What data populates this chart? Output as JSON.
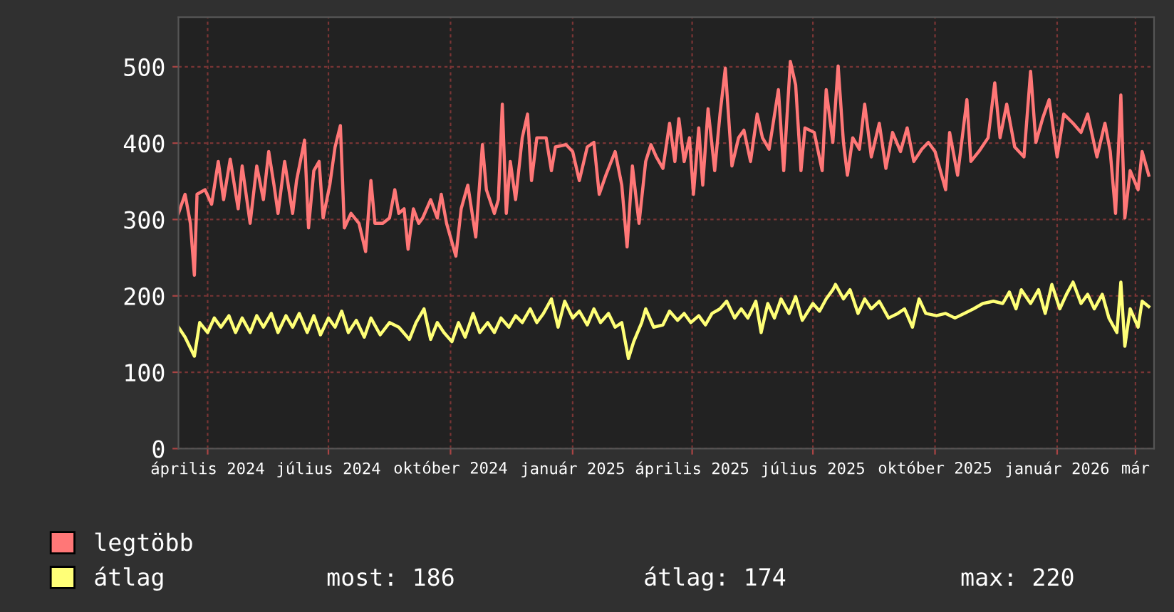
{
  "chart_data": {
    "type": "line",
    "x": [
      "2024-03-10",
      "2024-03-15",
      "2024-03-19",
      "2024-03-22",
      "2024-03-24",
      "2024-03-30",
      "2024-04-04",
      "2024-04-09",
      "2024-04-13",
      "2024-04-18",
      "2024-04-24",
      "2024-04-27",
      "2024-05-03",
      "2024-05-08",
      "2024-05-13",
      "2024-05-17",
      "2024-05-21",
      "2024-05-24",
      "2024-05-29",
      "2024-06-04",
      "2024-06-07",
      "2024-06-13",
      "2024-06-16",
      "2024-06-20",
      "2024-06-24",
      "2024-06-27",
      "2024-07-02",
      "2024-07-06",
      "2024-07-10",
      "2024-07-13",
      "2024-07-18",
      "2024-07-24",
      "2024-07-29",
      "2024-08-02",
      "2024-08-05",
      "2024-08-11",
      "2024-08-16",
      "2024-08-20",
      "2024-08-23",
      "2024-08-27",
      "2024-08-30",
      "2024-09-03",
      "2024-09-07",
      "2024-09-10",
      "2024-09-16",
      "2024-09-21",
      "2024-09-24",
      "2024-09-28",
      "2024-10-05",
      "2024-10-09",
      "2024-10-14",
      "2024-10-20",
      "2024-10-25",
      "2024-10-28",
      "2024-11-03",
      "2024-11-06",
      "2024-11-09",
      "2024-11-12",
      "2024-11-15",
      "2024-11-19",
      "2024-11-24",
      "2024-11-28",
      "2024-12-01",
      "2024-12-05",
      "2024-12-12",
      "2024-12-16",
      "2024-12-19",
      "2024-12-27",
      "2025-01-01",
      "2025-01-06",
      "2025-01-12",
      "2025-01-17",
      "2025-01-21",
      "2025-01-26",
      "2025-02-02",
      "2025-02-07",
      "2025-02-11",
      "2025-02-15",
      "2025-02-20",
      "2025-02-25",
      "2025-03-01",
      "2025-03-05",
      "2025-03-10",
      "2025-03-15",
      "2025-03-19",
      "2025-03-22",
      "2025-03-26",
      "2025-03-30",
      "2025-04-02",
      "2025-04-06",
      "2025-04-09",
      "2025-04-13",
      "2025-04-18",
      "2025-04-22",
      "2025-04-26",
      "2025-05-01",
      "2025-05-06",
      "2025-05-10",
      "2025-05-15",
      "2025-05-20",
      "2025-05-24",
      "2025-05-29",
      "2025-06-05",
      "2025-06-09",
      "2025-06-14",
      "2025-06-18",
      "2025-06-22",
      "2025-06-25",
      "2025-07-02",
      "2025-07-08",
      "2025-07-11",
      "2025-07-16",
      "2025-07-20",
      "2025-07-24",
      "2025-07-27",
      "2025-07-31",
      "2025-08-05",
      "2025-08-09",
      "2025-08-14",
      "2025-08-20",
      "2025-08-25",
      "2025-08-30",
      "2025-09-05",
      "2025-09-10",
      "2025-09-15",
      "2025-09-21",
      "2025-09-26",
      "2025-10-01",
      "2025-10-09",
      "2025-10-12",
      "2025-10-18",
      "2025-10-25",
      "2025-10-28",
      "2025-11-03",
      "2025-11-10",
      "2025-11-15",
      "2025-11-19",
      "2025-11-24",
      "2025-11-30",
      "2025-12-07",
      "2025-12-12",
      "2025-12-16",
      "2025-12-21",
      "2025-12-26",
      "2026-01-01",
      "2026-01-06",
      "2026-01-13",
      "2026-01-19",
      "2026-01-24",
      "2026-01-31",
      "2026-02-06",
      "2026-02-10",
      "2026-02-14",
      "2026-02-18",
      "2026-02-21",
      "2026-02-25",
      "2026-03-03",
      "2026-03-06",
      "2026-03-11"
    ],
    "series": [
      {
        "name": "legtöbb",
        "color": "#ff7777",
        "values": [
          308,
          333,
          295,
          227,
          333,
          339,
          320,
          376,
          326,
          379,
          314,
          370,
          295,
          370,
          326,
          389,
          345,
          308,
          376,
          308,
          351,
          404,
          289,
          364,
          376,
          302,
          345,
          395,
          423,
          289,
          308,
          295,
          258,
          351,
          295,
          295,
          302,
          339,
          308,
          314,
          261,
          314,
          295,
          302,
          326,
          302,
          333,
          295,
          252,
          314,
          345,
          277,
          398,
          339,
          308,
          326,
          451,
          308,
          376,
          326,
          407,
          438,
          351,
          407,
          407,
          364,
          395,
          398,
          389,
          351,
          395,
          401,
          333,
          358,
          389,
          345,
          264,
          370,
          295,
          376,
          398,
          382,
          367,
          426,
          376,
          432,
          376,
          407,
          333,
          420,
          345,
          445,
          364,
          438,
          498,
          370,
          407,
          417,
          376,
          438,
          407,
          392,
          470,
          364,
          507,
          476,
          364,
          420,
          414,
          364,
          470,
          401,
          501,
          401,
          358,
          407,
          392,
          451,
          382,
          426,
          367,
          414,
          389,
          420,
          376,
          392,
          401,
          389,
          339,
          414,
          358,
          457,
          376,
          389,
          407,
          479,
          407,
          451,
          395,
          382,
          494,
          401,
          432,
          457,
          382,
          438,
          426,
          414,
          438,
          382,
          426,
          389,
          308,
          463,
          302,
          364,
          339,
          389,
          358
        ]
      },
      {
        "name": "átlag",
        "color": "#ffff77",
        "x": [
          "2024-03-10",
          "2024-03-15",
          "2024-03-22",
          "2024-03-26",
          "2024-04-01",
          "2024-04-06",
          "2024-04-11",
          "2024-04-17",
          "2024-04-22",
          "2024-04-27",
          "2024-05-03",
          "2024-05-08",
          "2024-05-13",
          "2024-05-19",
          "2024-05-24",
          "2024-05-30",
          "2024-06-04",
          "2024-06-09",
          "2024-06-15",
          "2024-06-20",
          "2024-06-25",
          "2024-07-01",
          "2024-07-06",
          "2024-07-11",
          "2024-07-16",
          "2024-07-22",
          "2024-07-28",
          "2024-08-02",
          "2024-08-09",
          "2024-08-16",
          "2024-08-23",
          "2024-08-31",
          "2024-09-05",
          "2024-09-11",
          "2024-09-16",
          "2024-09-21",
          "2024-09-26",
          "2024-10-02",
          "2024-10-07",
          "2024-10-12",
          "2024-10-18",
          "2024-10-23",
          "2024-10-29",
          "2024-11-03",
          "2024-11-08",
          "2024-11-14",
          "2024-11-19",
          "2024-11-24",
          "2024-11-30",
          "2024-12-05",
          "2024-12-10",
          "2024-12-16",
          "2024-12-21",
          "2024-12-26",
          "2025-01-01",
          "2025-01-06",
          "2025-01-12",
          "2025-01-17",
          "2025-01-22",
          "2025-01-28",
          "2025-02-02",
          "2025-02-07",
          "2025-02-12",
          "2025-02-16",
          "2025-02-22",
          "2025-02-25",
          "2025-03-03",
          "2025-03-10",
          "2025-03-15",
          "2025-03-21",
          "2025-03-26",
          "2025-03-31",
          "2025-04-06",
          "2025-04-11",
          "2025-04-16",
          "2025-04-22",
          "2025-04-27",
          "2025-05-03",
          "2025-05-08",
          "2025-05-13",
          "2025-05-19",
          "2025-05-23",
          "2025-05-28",
          "2025-06-02",
          "2025-06-07",
          "2025-06-13",
          "2025-06-18",
          "2025-06-23",
          "2025-07-01",
          "2025-07-06",
          "2025-07-11",
          "2025-07-16",
          "2025-07-18",
          "2025-07-24",
          "2025-07-29",
          "2025-08-04",
          "2025-08-09",
          "2025-08-14",
          "2025-08-20",
          "2025-08-27",
          "2025-09-03",
          "2025-09-08",
          "2025-09-14",
          "2025-09-19",
          "2025-09-24",
          "2025-10-02",
          "2025-10-09",
          "2025-10-16",
          "2025-10-23",
          "2025-10-30",
          "2025-11-06",
          "2025-11-14",
          "2025-11-21",
          "2025-11-26",
          "2025-12-01",
          "2025-12-05",
          "2025-12-12",
          "2025-12-18",
          "2025-12-23",
          "2025-12-28",
          "2026-01-03",
          "2026-01-08",
          "2026-01-13",
          "2026-01-19",
          "2026-01-24",
          "2026-01-29",
          "2026-02-04",
          "2026-02-09",
          "2026-02-15",
          "2026-02-18",
          "2026-02-21",
          "2026-02-25",
          "2026-03-03",
          "2026-03-06",
          "2026-03-11"
        ],
        "values": [
          159,
          146,
          121,
          165,
          152,
          171,
          159,
          174,
          152,
          171,
          152,
          174,
          159,
          177,
          152,
          174,
          159,
          177,
          152,
          174,
          149,
          171,
          159,
          180,
          152,
          168,
          146,
          171,
          149,
          165,
          159,
          143,
          165,
          183,
          143,
          165,
          152,
          140,
          165,
          146,
          177,
          152,
          165,
          152,
          171,
          159,
          174,
          165,
          183,
          165,
          177,
          196,
          159,
          193,
          171,
          180,
          162,
          183,
          165,
          177,
          159,
          165,
          118,
          140,
          165,
          183,
          159,
          162,
          180,
          168,
          177,
          165,
          174,
          162,
          177,
          183,
          193,
          171,
          183,
          171,
          193,
          152,
          190,
          171,
          196,
          177,
          199,
          168,
          190,
          180,
          196,
          208,
          215,
          196,
          208,
          177,
          196,
          183,
          193,
          171,
          177,
          183,
          159,
          196,
          177,
          174,
          177,
          171,
          177,
          183,
          190,
          193,
          190,
          205,
          183,
          208,
          190,
          208,
          177,
          215,
          183,
          202,
          218,
          190,
          202,
          183,
          202,
          171,
          152,
          218,
          134,
          183,
          159,
          193,
          186
        ]
      }
    ],
    "xlim": [
      "2024-03-10",
      "2026-03-15"
    ],
    "xticks": [
      {
        "value": "2024-04-01",
        "label": "április 2024"
      },
      {
        "value": "2024-07-01",
        "label": "július 2024"
      },
      {
        "value": "2024-10-01",
        "label": "október 2024"
      },
      {
        "value": "2025-01-01",
        "label": "január 2025"
      },
      {
        "value": "2025-04-01",
        "label": "április 2025"
      },
      {
        "value": "2025-07-01",
        "label": "július 2025"
      },
      {
        "value": "2025-10-01",
        "label": "október 2025"
      },
      {
        "value": "2026-01-01",
        "label": "január 2026"
      },
      {
        "value": "2026-03-01",
        "label": "már"
      }
    ],
    "ylim": [
      0,
      565
    ],
    "yticks": [
      0,
      100,
      200,
      300,
      400,
      500
    ],
    "grid": true,
    "legend": "bottom left",
    "line_style": "solid",
    "annotations": [
      "most: 186",
      "átlag: 174",
      "max: 220"
    ]
  }
}
